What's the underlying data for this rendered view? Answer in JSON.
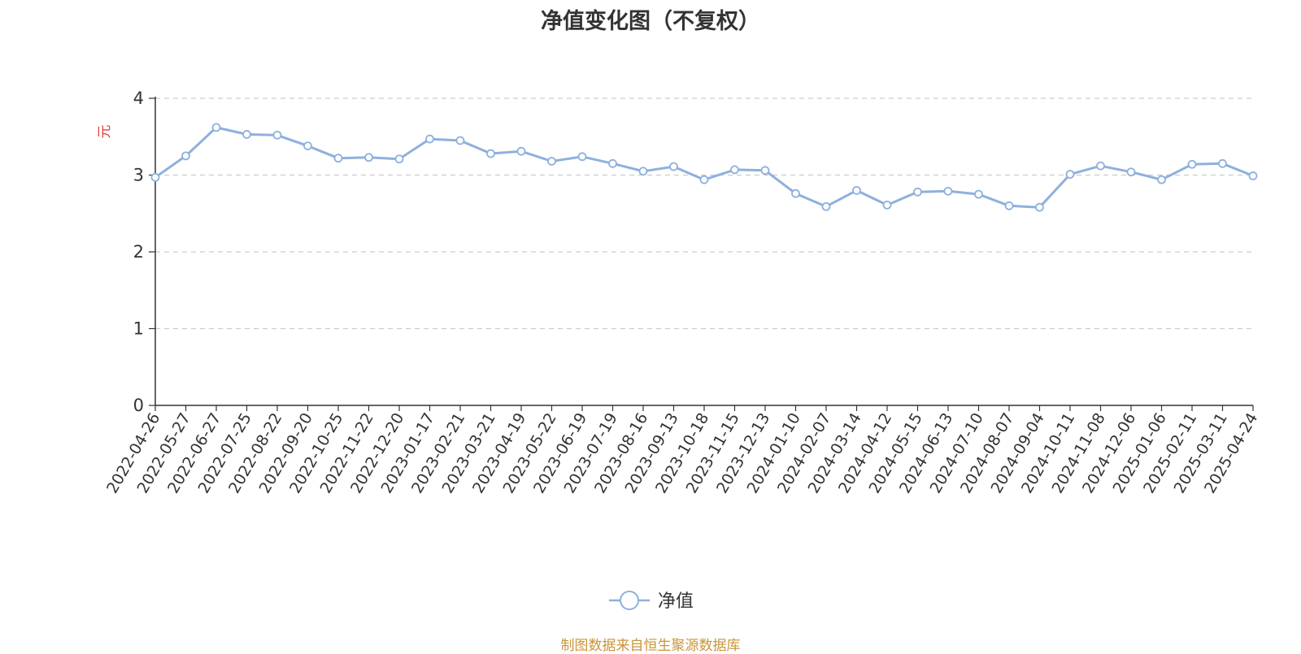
{
  "chart_data": {
    "type": "line",
    "title": "净值变化图（不复权）",
    "ylabel": "元",
    "ylim": [
      0,
      4
    ],
    "yticks": [
      0,
      1,
      2,
      3,
      4
    ],
    "grid": true,
    "legend_position": "bottom",
    "categories": [
      "2022-04-26",
      "2022-05-27",
      "2022-06-27",
      "2022-07-25",
      "2022-08-22",
      "2022-09-20",
      "2022-10-25",
      "2022-11-22",
      "2022-12-20",
      "2023-01-17",
      "2023-02-21",
      "2023-03-21",
      "2023-04-19",
      "2023-05-22",
      "2023-06-19",
      "2023-07-19",
      "2023-08-16",
      "2023-09-13",
      "2023-10-18",
      "2023-11-15",
      "2023-12-13",
      "2024-01-10",
      "2024-02-07",
      "2024-03-14",
      "2024-04-12",
      "2024-05-15",
      "2024-06-13",
      "2024-07-10",
      "2024-08-07",
      "2024-09-04",
      "2024-10-11",
      "2024-11-08",
      "2024-12-06",
      "2025-01-06",
      "2025-02-11",
      "2025-03-11",
      "2025-04-24"
    ],
    "series": [
      {
        "name": "净值",
        "color": "#8eb0dd",
        "values": [
          2.97,
          3.25,
          3.62,
          3.53,
          3.52,
          3.38,
          3.22,
          3.23,
          3.21,
          3.47,
          3.45,
          3.28,
          3.31,
          3.18,
          3.24,
          3.15,
          3.05,
          3.11,
          2.94,
          3.07,
          3.06,
          2.76,
          2.59,
          2.8,
          2.61,
          2.78,
          2.79,
          2.75,
          2.6,
          2.58,
          3.01,
          3.12,
          3.04,
          2.94,
          3.14,
          3.15,
          2.99
        ]
      }
    ]
  },
  "source_note": "制图数据来自恒生聚源数据库"
}
